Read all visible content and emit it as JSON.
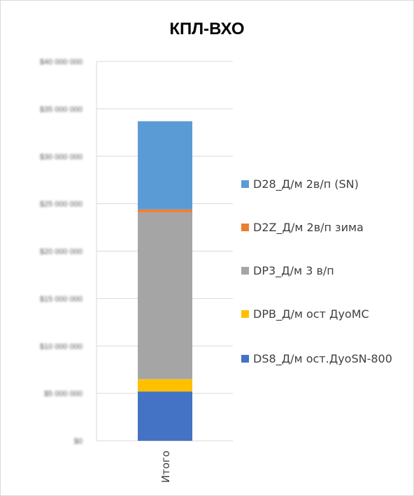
{
  "chart_data": {
    "type": "bar",
    "stacked": true,
    "title": "КПЛ-ВХО",
    "categories": [
      "Итого"
    ],
    "ylim": [
      0,
      40000000
    ],
    "y_tick_labels": [
      "$0",
      "$5 000 000",
      "$10 000 000",
      "$15 000 000",
      "$20 000 000",
      "$25 000 000",
      "$30 000 000",
      "$35 000 000",
      "$40 000 000"
    ],
    "y_tick_values": [
      0,
      5000000,
      10000000,
      15000000,
      20000000,
      25000000,
      30000000,
      35000000,
      40000000
    ],
    "grid": true,
    "legend_position": "right",
    "series": [
      {
        "name": "DS8_Д/м ост.ДуоSN-800",
        "color": "#4472c4",
        "values": [
          5200000
        ]
      },
      {
        "name": "DPB_Д/м ост ДуоМС",
        "color": "#ffc000",
        "values": [
          1300000
        ]
      },
      {
        "name": "DP3_Д/м 3 в/п",
        "color": "#a5a5a5",
        "values": [
          17600000
        ]
      },
      {
        "name": "D2Z_Д/м 2в/п зима",
        "color": "#ed7d31",
        "values": [
          300000
        ]
      },
      {
        "name": "D28_Д/м 2в/п (SN)",
        "color": "#5b9bd5",
        "values": [
          9300000
        ]
      }
    ]
  }
}
